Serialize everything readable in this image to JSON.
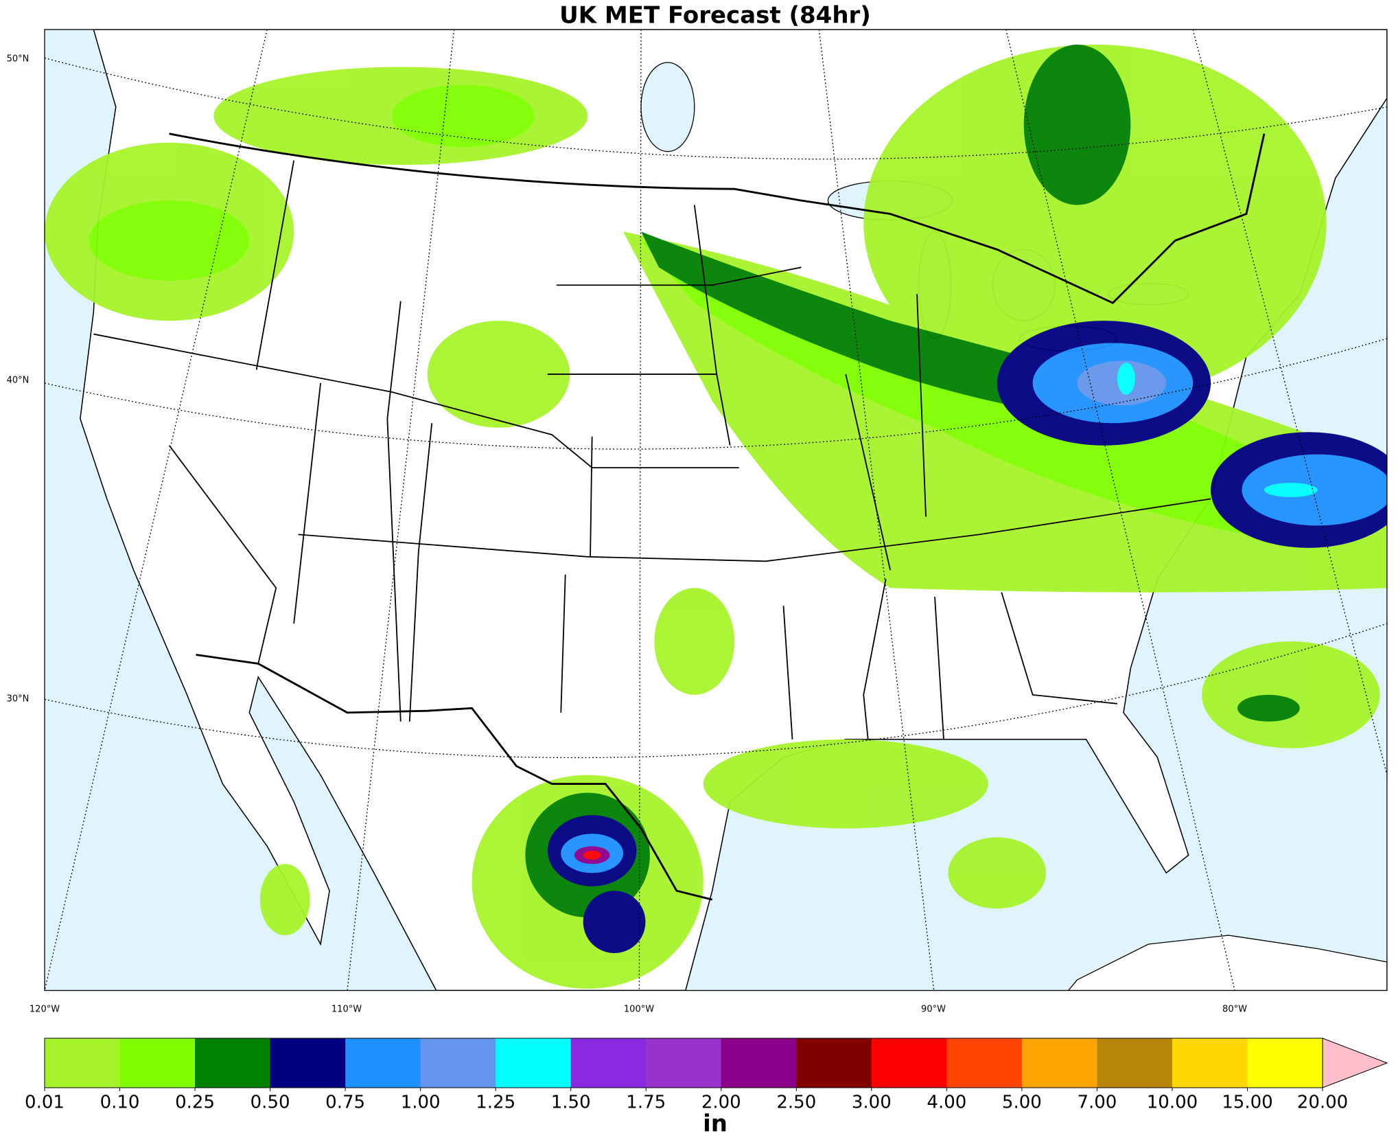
{
  "title": "UK MET Forecast (84hr)",
  "lat_labels": [
    "50°N",
    "40°N",
    "30°N"
  ],
  "lon_labels": [
    "120°W",
    "110°W",
    "100°W",
    "90°W",
    "80°W"
  ],
  "colorbar": {
    "label": "in",
    "ticks": [
      0.01,
      {
        "value": 0.1,
        "label": "0.10"
      },
      0.25,
      {
        "value": 0.5,
        "label": "0.50"
      },
      0.75,
      {
        "value": 1,
        "label": "1.00"
      },
      1.25,
      {
        "value": 1.5,
        "label": "1.50"
      },
      1.75,
      {
        "value": 2,
        "label": "2.00"
      },
      {
        "value": 2.5,
        "label": "2.50"
      },
      {
        "value": 3,
        "label": "3.00"
      },
      {
        "value": 4,
        "label": "4.00"
      },
      {
        "value": 5,
        "label": "5.00"
      },
      {
        "value": 7,
        "label": "7.00"
      },
      {
        "value": 10,
        "label": "10.00"
      },
      {
        "value": 15,
        "label": "15.00"
      },
      {
        "value": 20,
        "label": "20.00"
      }
    ],
    "colors": [
      "#a6f32b",
      "#7fff00",
      "#008000",
      "#000080",
      "#1e90ff",
      "#6495ed",
      "#00ffff",
      "#8a2be2",
      "#9932cc",
      "#8b008b",
      "#800000",
      "#ff0000",
      "#ff4500",
      "#ffa500",
      "#b8860b",
      "#ffd700",
      "#ffff00"
    ],
    "extend_color": "#ffc0cb"
  }
}
